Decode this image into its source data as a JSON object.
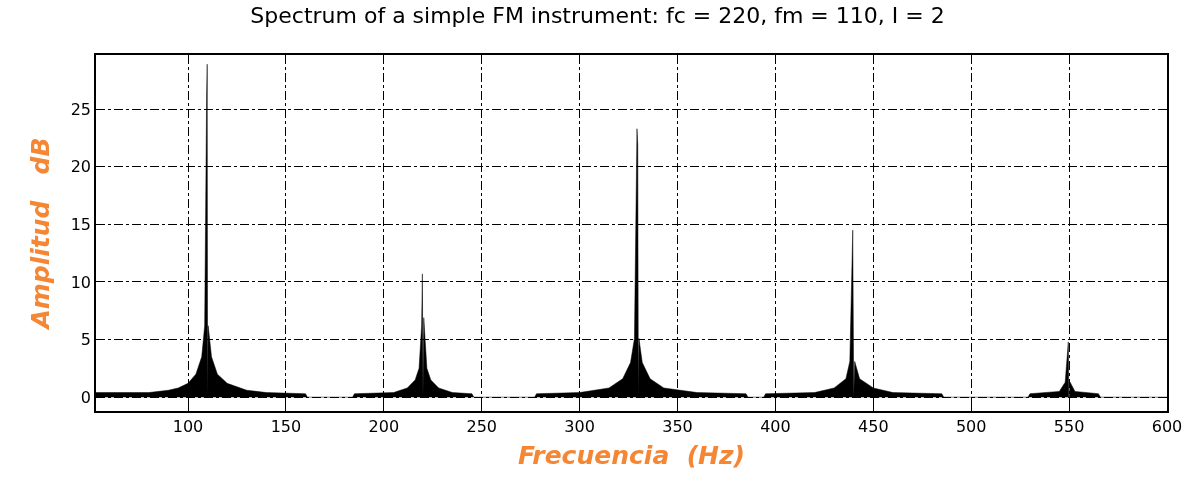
{
  "chart_data": {
    "type": "area",
    "title": "Spectrum of a simple FM instrument: fc = 220, fm = 110, I = 2",
    "xlabel": "Frecuencia  (Hz)",
    "ylabel": "Amplitud   dB",
    "x": [
      53,
      80,
      90,
      95,
      100,
      104,
      107,
      108.5,
      109.5,
      109.8,
      110,
      110.3,
      112,
      115,
      120,
      130,
      140,
      160,
      161,
      184,
      185,
      205,
      212,
      216,
      218,
      219.3,
      219.7,
      220,
      220.4,
      222,
      224,
      228,
      235,
      245,
      246,
      277,
      278,
      300,
      315,
      322,
      326,
      328,
      329.3,
      329.7,
      330,
      330.3,
      332,
      336,
      343,
      360,
      385,
      386,
      394,
      395,
      420,
      430,
      436,
      438,
      439.5,
      440,
      440.5,
      443,
      450,
      460,
      485,
      486,
      529,
      530,
      545,
      548,
      549.6,
      549.85,
      550.15,
      550.5,
      553,
      565,
      566,
      600
    ],
    "series": [
      {
        "color": "#000000",
        "values": [
          0.4,
          0.4,
          0.6,
          0.8,
          1.2,
          2,
          3.5,
          6.2,
          26.1,
          28.9,
          0,
          6.2,
          3.5,
          2,
          1.2,
          0.6,
          0.4,
          0.3,
          0,
          0,
          0.3,
          0.4,
          0.8,
          1.5,
          2.5,
          6.2,
          10.7,
          0,
          6.9,
          2.5,
          1.5,
          0.8,
          0.4,
          0.3,
          0,
          0,
          0.3,
          0.4,
          0.8,
          1.6,
          3,
          5.1,
          23.3,
          21.9,
          0,
          5.1,
          3,
          1.6,
          0.8,
          0.4,
          0.3,
          0,
          0,
          0.3,
          0.4,
          0.8,
          1.6,
          3.1,
          14.5,
          0,
          3.1,
          1.6,
          0.8,
          0.4,
          0.3,
          0,
          0,
          0.3,
          0.5,
          1.3,
          4.8,
          0,
          0,
          1.3,
          0.5,
          0.3,
          0,
          0
        ]
      }
    ],
    "xlim": [
      53,
      600
    ],
    "ylim": [
      -1.2,
      29.7
    ],
    "xticks": [
      100,
      150,
      200,
      250,
      300,
      350,
      400,
      450,
      500,
      550,
      600
    ],
    "yticks": [
      0,
      5,
      10,
      15,
      20,
      25
    ],
    "grid": true,
    "marker": "none",
    "line_style": "solid"
  }
}
